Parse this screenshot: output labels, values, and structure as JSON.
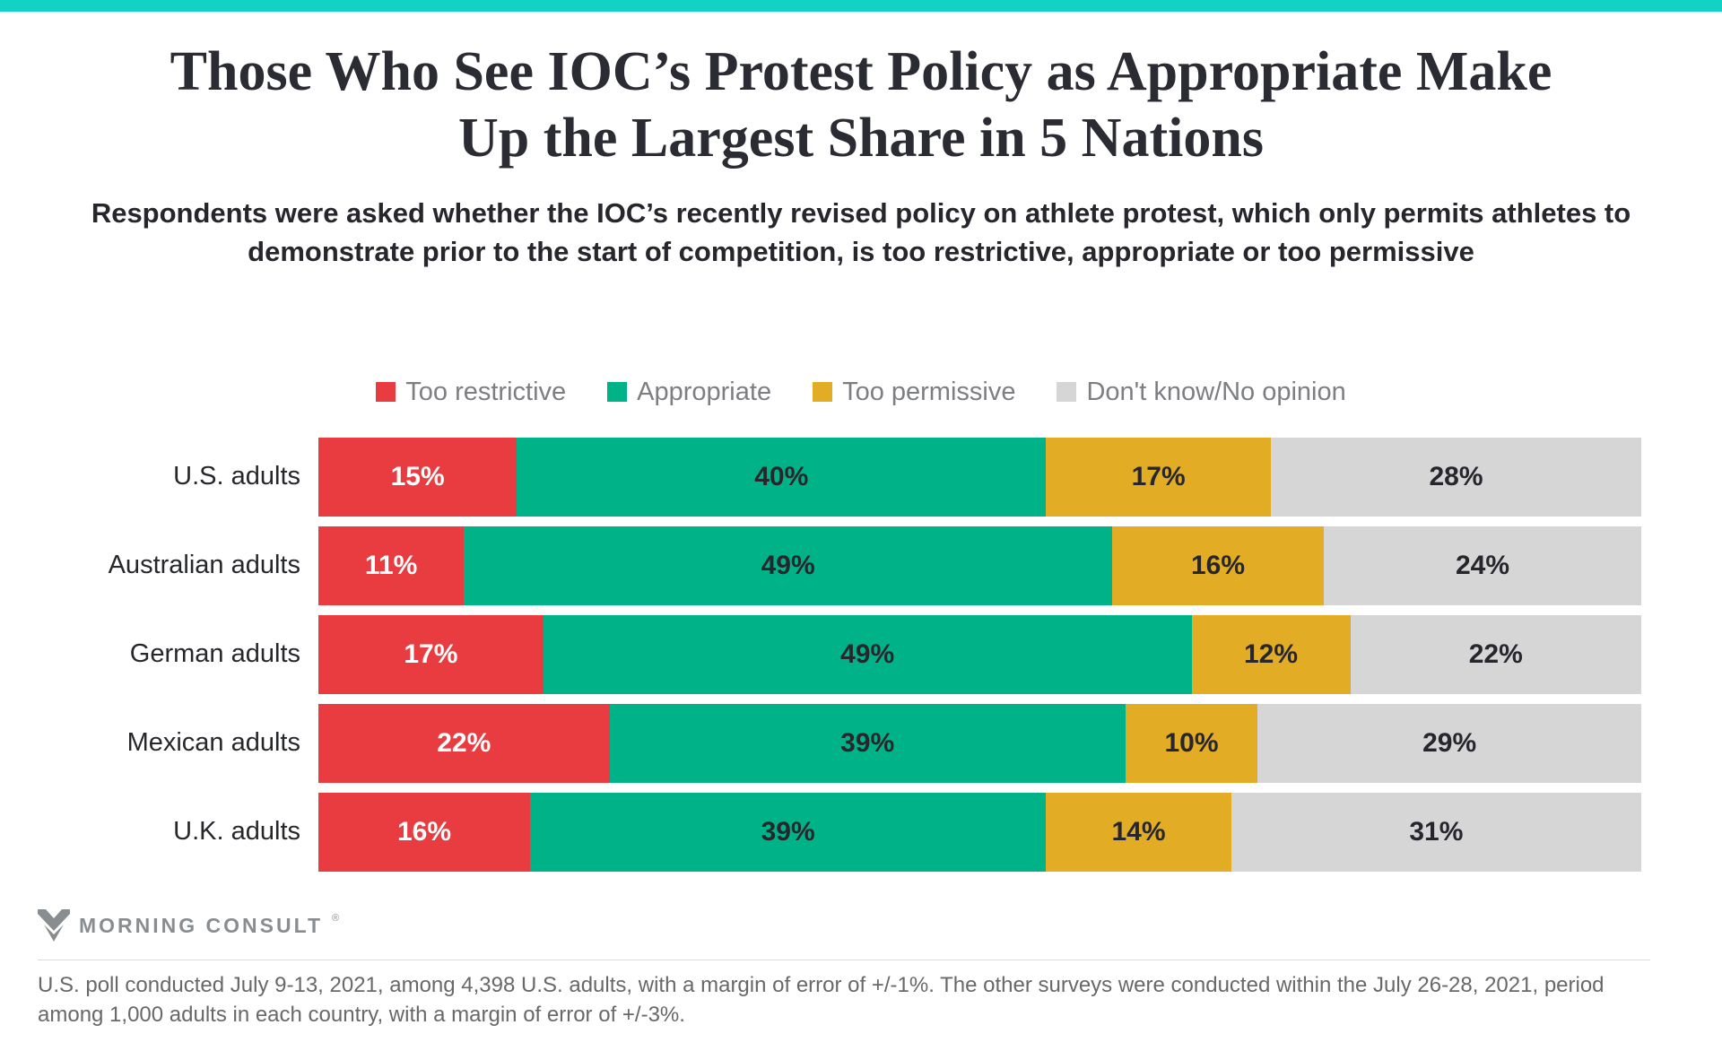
{
  "page": {
    "accent_bar_color": "#12d2c5",
    "title": "Those Who See IOC’s Protest Policy as Appropriate Make Up the Largest Share in 5 Nations",
    "subtitle": "Respondents were asked whether the IOC’s recently revised policy on athlete protest, which only permits athletes to demonstrate prior to the start of competition, is too restrictive, appropriate or too permissive"
  },
  "legend": {
    "items": [
      {
        "label": "Too restrictive",
        "color": "#e93c41"
      },
      {
        "label": "Appropriate",
        "color": "#00b287"
      },
      {
        "label": "Too permissive",
        "color": "#e2ac25"
      },
      {
        "label": "Don't know/No opinion",
        "color": "#d6d6d6"
      }
    ]
  },
  "chart_data": {
    "type": "bar",
    "orientation": "horizontal",
    "stacked": true,
    "unit": "%",
    "xlim": [
      0,
      100
    ],
    "legend_position": "top",
    "value_labels": "inside",
    "grid": false,
    "categories": [
      "U.S. adults",
      "Australian adults",
      "German adults",
      "Mexican adults",
      "U.K. adults"
    ],
    "series": [
      {
        "name": "Too restrictive",
        "color": "#e93c41",
        "label_color": "#ffffff",
        "values": [
          15,
          11,
          17,
          22,
          16
        ]
      },
      {
        "name": "Appropriate",
        "color": "#00b287",
        "label_color": "#26262c",
        "values": [
          40,
          49,
          49,
          39,
          39
        ]
      },
      {
        "name": "Too permissive",
        "color": "#e2ac25",
        "label_color": "#26262c",
        "values": [
          17,
          16,
          12,
          10,
          14
        ]
      },
      {
        "name": "Don't know/No opinion",
        "color": "#d6d6d6",
        "label_color": "#26262c",
        "values": [
          28,
          24,
          22,
          29,
          31
        ]
      }
    ]
  },
  "footer": {
    "brand": "MORNING CONSULT",
    "brand_registered": "®",
    "note": "U.S. poll conducted July 9-13, 2021, among 4,398 U.S. adults, with a margin of error of +/-1%. The other surveys were conducted within the July 26-28, 2021, period among 1,000 adults in each country, with a margin of error of +/-3%."
  }
}
